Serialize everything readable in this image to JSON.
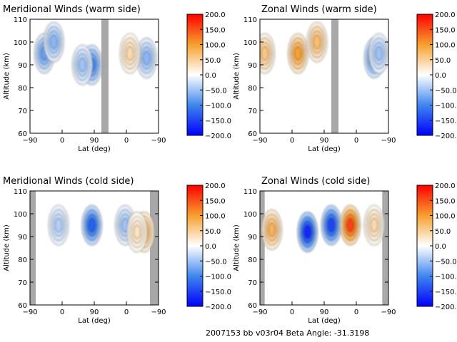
{
  "footer": "2007153 bb v03r04   Beta Angle: -31.3198",
  "colorbar_ticks": [
    "200.0",
    "150.0",
    "100.0",
    "50.0",
    "0.0",
    "-50.0",
    "-100.0",
    "-150.0",
    "-200.0"
  ],
  "colorbar_colors": {
    "neg_max": "#0000ff",
    "neg_mid": "#3f86ee",
    "neutral": "#ffffff",
    "pos_mid": "#f6a030",
    "pos_max": "#ff0000"
  },
  "shade_color": "#a8a8a8",
  "chart_data": [
    {
      "type": "heatmap",
      "title": "Meridional Winds (warm side)",
      "xlabel": "Lat (deg)",
      "ylabel": "Altitude (km)",
      "x_ticks": [
        "-90",
        "0",
        "90",
        "0",
        "-90"
      ],
      "y_ticks": [
        "110",
        "100",
        "90",
        "80",
        "70",
        "60"
      ],
      "ylim": [
        60,
        110
      ],
      "clim": [
        -200,
        200
      ],
      "shaded_bands": [
        [
          60,
          75
        ]
      ],
      "features": [
        {
          "x": -60,
          "y": 95,
          "value": -80
        },
        {
          "x": -40,
          "y": 100,
          "value": -60
        },
        {
          "x": 40,
          "y": 90,
          "value": -100
        },
        {
          "x": 20,
          "y": 90,
          "value": -50
        },
        {
          "x": 155,
          "y": 93,
          "value": -60
        },
        {
          "x": 120,
          "y": 95,
          "value": 40
        }
      ]
    },
    {
      "type": "heatmap",
      "title": "Zonal Winds (warm side)",
      "xlabel": "Lat (deg)",
      "ylabel": "Altitude (km)",
      "x_ticks": [
        "-90",
        "0",
        "90",
        "0",
        "-90"
      ],
      "y_ticks": [
        "110",
        "100",
        "90",
        "80",
        "70",
        "60"
      ],
      "ylim": [
        60,
        110
      ],
      "clim": [
        -200,
        200
      ],
      "shaded_bands": [
        [
          60,
          75
        ]
      ],
      "features": [
        {
          "x": -10,
          "y": 95,
          "value": 100
        },
        {
          "x": 30,
          "y": 100,
          "value": 70
        },
        {
          "x": -80,
          "y": 95,
          "value": 60
        },
        {
          "x": 150,
          "y": 93,
          "value": -100
        },
        {
          "x": 160,
          "y": 95,
          "value": -50
        }
      ]
    },
    {
      "type": "heatmap",
      "title": "Meridional Winds (cold side)",
      "xlabel": "Lat (deg)",
      "ylabel": "Altitude (km)",
      "x_ticks": [
        "-90",
        "0",
        "90",
        "0",
        "-90"
      ],
      "y_ticks": [
        "110",
        "100",
        "90",
        "80",
        "70",
        "60"
      ],
      "ylim": [
        60,
        110
      ],
      "clim": [
        -200,
        200
      ],
      "shaded_bands": [
        [
          -90,
          -78
        ],
        [
          162,
          180
        ]
      ],
      "features": [
        {
          "x": 40,
          "y": 95,
          "value": -130
        },
        {
          "x": -30,
          "y": 95,
          "value": -40
        },
        {
          "x": 110,
          "y": 95,
          "value": -50
        },
        {
          "x": 150,
          "y": 92,
          "value": 80
        },
        {
          "x": 135,
          "y": 92,
          "value": 30
        }
      ]
    },
    {
      "type": "heatmap",
      "title": "Zonal Winds (cold side)",
      "xlabel": "Lat (deg)",
      "ylabel": "Altitude (km)",
      "x_ticks": [
        "-90",
        "0",
        "90",
        "0",
        "-90"
      ],
      "y_ticks": [
        "110",
        "100",
        "90",
        "80",
        "70",
        "60"
      ],
      "ylim": [
        60,
        110
      ],
      "clim": [
        -200,
        200
      ],
      "shaded_bands": [
        [
          -90,
          -80
        ],
        [
          167,
          180
        ]
      ],
      "features": [
        {
          "x": 10,
          "y": 92,
          "value": -170
        },
        {
          "x": 60,
          "y": 95,
          "value": -150
        },
        {
          "x": 100,
          "y": 95,
          "value": 160
        },
        {
          "x": 150,
          "y": 95,
          "value": 40
        },
        {
          "x": -65,
          "y": 93,
          "value": 80
        }
      ]
    }
  ]
}
